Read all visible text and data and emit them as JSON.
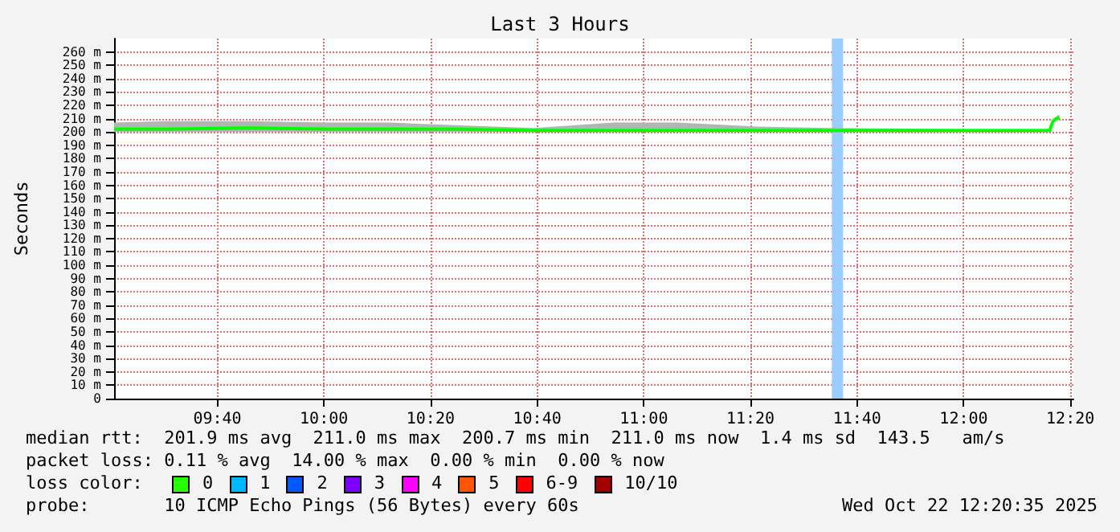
{
  "chart_data": {
    "type": "line",
    "title": "Last 3 Hours",
    "ylabel": "Seconds",
    "x": [
      9.344,
      9.513,
      9.762,
      10.011,
      10.21,
      10.409,
      10.657,
      10.906,
      11.105,
      11.354,
      11.578,
      12.001,
      12.269,
      12.279,
      12.299
    ],
    "series": [
      {
        "color": "#00ff00",
        "values": [
          202,
          202,
          203,
          202,
          202,
          202,
          201,
          201,
          201,
          201,
          201,
          201,
          201,
          208,
          211
        ],
        "lower": [
          200,
          200,
          200,
          200,
          200,
          200,
          200,
          200,
          200,
          200,
          200,
          200,
          200,
          207,
          210
        ],
        "upper": [
          207,
          208,
          208,
          207,
          207,
          205,
          203,
          207,
          207,
          204,
          203,
          202,
          202,
          210,
          213
        ]
      }
    ],
    "bands": [
      {
        "axis": "x",
        "from": 11.588,
        "to": 11.623,
        "color": "#99ccff"
      }
    ],
    "xlim": [
      9.344,
      12.343
    ],
    "xticks": [
      {
        "value": 9.6667,
        "label": "09:40"
      },
      {
        "value": 10,
        "label": "10:00"
      },
      {
        "value": 10.3333,
        "label": "10:20"
      },
      {
        "value": 10.6667,
        "label": "10:40"
      },
      {
        "value": 11,
        "label": "11:00"
      },
      {
        "value": 11.3333,
        "label": "11:20"
      },
      {
        "value": 11.6667,
        "label": "11:40"
      },
      {
        "value": 12,
        "label": "12:00"
      },
      {
        "value": 12.3333,
        "label": "12:20"
      }
    ],
    "ylim": [
      0,
      270
    ],
    "yticks": [
      0,
      {
        "value": 10,
        "label": "10 m"
      },
      {
        "value": 20,
        "label": "20 m"
      },
      {
        "value": 30,
        "label": "30 m"
      },
      {
        "value": 40,
        "label": "40 m"
      },
      {
        "value": 50,
        "label": "50 m"
      },
      {
        "value": 60,
        "label": "60 m"
      },
      {
        "value": 70,
        "label": "70 m"
      },
      {
        "value": 80,
        "label": "80 m"
      },
      {
        "value": 90,
        "label": "90 m"
      },
      {
        "value": 100,
        "label": "100 m"
      },
      {
        "value": 110,
        "label": "110 m"
      },
      {
        "value": 120,
        "label": "120 m"
      },
      {
        "value": 130,
        "label": "130 m"
      },
      {
        "value": 140,
        "label": "140 m"
      },
      {
        "value": 150,
        "label": "150 m"
      },
      {
        "value": 160,
        "label": "160 m"
      },
      {
        "value": 170,
        "label": "170 m"
      },
      {
        "value": 180,
        "label": "180 m"
      },
      {
        "value": 190,
        "label": "190 m"
      },
      {
        "value": 200,
        "label": "200 m"
      },
      {
        "value": 210,
        "label": "210 m"
      },
      {
        "value": 220,
        "label": "220 m"
      },
      {
        "value": 230,
        "label": "230 m"
      },
      {
        "value": 240,
        "label": "240 m"
      },
      {
        "value": 250,
        "label": "250 m"
      },
      {
        "value": 260,
        "label": "260 m"
      }
    ],
    "grid": true,
    "marker": "none",
    "line_style": "solid",
    "annotations": [
      "median rtt:  201.9 ms avg  211.0 ms max  200.7 ms min  211.0 ms now  1.4 ms sd  143.5   am/s",
      "packet loss: 0.11 % avg  14.00 % max  0.00 % min  0.00 % now",
      "loss color:",
      "0",
      "1",
      "2",
      "3",
      "4",
      "5",
      "6-9",
      "10/10",
      "probe:       10 ICMP Echo Pings (56 Bytes) every 60s",
      "Wed Oct 22 12:20:35 2025"
    ]
  }
}
